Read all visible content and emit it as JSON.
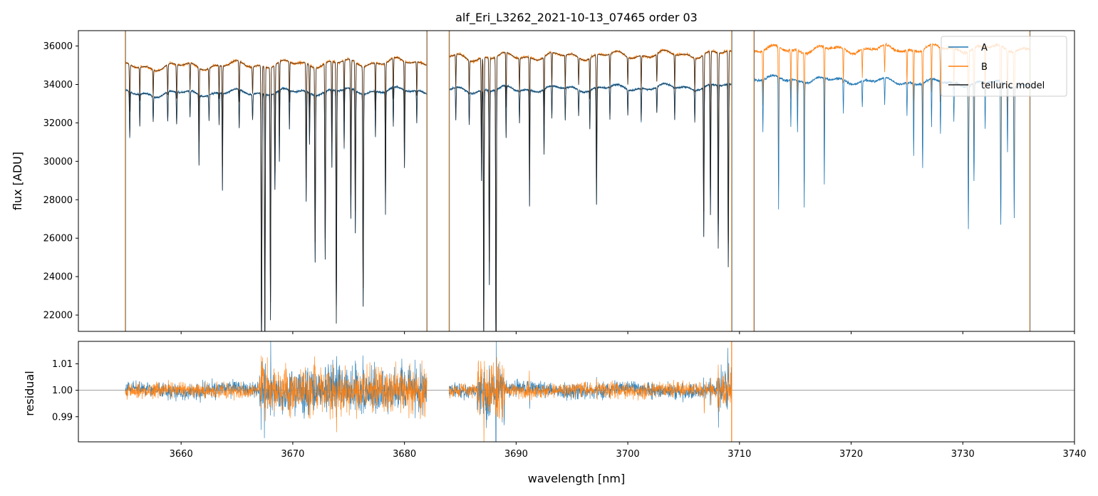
{
  "chart_data": {
    "type": "line",
    "title": "alf_Eri_L3262_2021-10-13_07465  order 03",
    "xlabel": "wavelength [nm]",
    "x_ticks": [
      3660,
      3670,
      3680,
      3690,
      3700,
      3710,
      3720,
      3730,
      3740
    ],
    "xlim": [
      3650.8,
      3740
    ],
    "colors": {
      "A": "#1f77b4",
      "B": "#ff7f0e",
      "model": "#202020",
      "refline": "#808080"
    },
    "legend": {
      "position": "top-right",
      "entries": [
        "A",
        "B",
        "telluric model"
      ]
    },
    "panels": [
      {
        "name": "flux",
        "ylabel": "flux [ADU]",
        "ylim": [
          21150,
          36800
        ],
        "y_ticks": [
          22000,
          24000,
          26000,
          28000,
          30000,
          32000,
          34000,
          36000
        ],
        "segments": [
          {
            "range": [
              3655.0,
              3682.0
            ],
            "baseA": 33500,
            "baseB": 34900,
            "trendA": 200,
            "trendB": 300,
            "model": true
          },
          {
            "range": [
              3684.0,
              3709.3
            ],
            "baseA": 33700,
            "baseB": 35400,
            "trendA": 200,
            "trendB": 200,
            "model": true
          },
          {
            "range": [
              3711.3,
              3736.0
            ],
            "baseA": 34300,
            "baseB": 35800,
            "trendA": -300,
            "trendB": 100,
            "model": false
          }
        ],
        "spikes": [
          3655.0,
          3682.0,
          3684.0,
          3709.3,
          3711.3,
          3736.0
        ],
        "absorption_lines": [
          [
            3655.4,
            0.03,
            0.07
          ],
          [
            3656.3,
            0.025,
            0.05
          ],
          [
            3657.5,
            0.025,
            0.04
          ],
          [
            3658.8,
            0.03,
            0.045
          ],
          [
            3659.6,
            0.03,
            0.05
          ],
          [
            3660.8,
            0.025,
            0.04
          ],
          [
            3661.6,
            0.025,
            0.11
          ],
          [
            3662.5,
            0.025,
            0.04
          ],
          [
            3663.4,
            0.025,
            0.05
          ],
          [
            3663.7,
            0.025,
            0.15
          ],
          [
            3665.2,
            0.03,
            0.06
          ],
          [
            3666.4,
            0.03,
            0.04
          ],
          [
            3667.2,
            0.035,
            0.4
          ],
          [
            3667.5,
            0.03,
            0.4
          ],
          [
            3668.0,
            0.03,
            0.35
          ],
          [
            3668.4,
            0.03,
            0.15
          ],
          [
            3668.8,
            0.025,
            0.11
          ],
          [
            3669.7,
            0.025,
            0.06
          ],
          [
            3671.2,
            0.03,
            0.17
          ],
          [
            3671.5,
            0.025,
            0.08
          ],
          [
            3672.0,
            0.03,
            0.26
          ],
          [
            3672.9,
            0.03,
            0.26
          ],
          [
            3673.5,
            0.025,
            0.12
          ],
          [
            3673.9,
            0.03,
            0.36
          ],
          [
            3674.6,
            0.025,
            0.09
          ],
          [
            3675.2,
            0.03,
            0.2
          ],
          [
            3675.6,
            0.03,
            0.22
          ],
          [
            3676.3,
            0.03,
            0.33
          ],
          [
            3677.4,
            0.025,
            0.07
          ],
          [
            3678.3,
            0.025,
            0.19
          ],
          [
            3679.0,
            0.025,
            0.06
          ],
          [
            3680.0,
            0.025,
            0.12
          ],
          [
            3681.1,
            0.025,
            0.05
          ],
          [
            3684.6,
            0.025,
            0.05
          ],
          [
            3685.8,
            0.025,
            0.05
          ],
          [
            3686.9,
            0.03,
            0.14
          ],
          [
            3687.1,
            0.03,
            0.4
          ],
          [
            3687.6,
            0.03,
            0.3
          ],
          [
            3688.2,
            0.03,
            0.45
          ],
          [
            3689.1,
            0.025,
            0.08
          ],
          [
            3690.3,
            0.025,
            0.05
          ],
          [
            3691.2,
            0.025,
            0.18
          ],
          [
            3692.5,
            0.025,
            0.1
          ],
          [
            3693.2,
            0.025,
            0.05
          ],
          [
            3694.4,
            0.025,
            0.05
          ],
          [
            3695.6,
            0.025,
            0.04
          ],
          [
            3696.6,
            0.025,
            0.06
          ],
          [
            3697.2,
            0.03,
            0.18
          ],
          [
            3698.4,
            0.025,
            0.05
          ],
          [
            3700.0,
            0.025,
            0.04
          ],
          [
            3701.2,
            0.025,
            0.05
          ],
          [
            3702.6,
            0.025,
            0.04
          ],
          [
            3704.2,
            0.025,
            0.05
          ],
          [
            3706.0,
            0.025,
            0.05
          ],
          [
            3706.8,
            0.03,
            0.23
          ],
          [
            3707.4,
            0.03,
            0.2
          ],
          [
            3708.1,
            0.03,
            0.25
          ],
          [
            3709.0,
            0.03,
            0.28
          ],
          [
            3712.1,
            0.025,
            0.08
          ],
          [
            3713.5,
            0.025,
            0.2
          ],
          [
            3714.6,
            0.025,
            0.07
          ],
          [
            3715.2,
            0.025,
            0.08
          ],
          [
            3715.8,
            0.025,
            0.19
          ],
          [
            3717.6,
            0.025,
            0.16
          ],
          [
            3719.3,
            0.025,
            0.05
          ],
          [
            3721.0,
            0.025,
            0.04
          ],
          [
            3723.0,
            0.025,
            0.04
          ],
          [
            3725.0,
            0.025,
            0.05
          ],
          [
            3725.6,
            0.025,
            0.11
          ],
          [
            3726.4,
            0.025,
            0.13
          ],
          [
            3727.2,
            0.025,
            0.07
          ],
          [
            3728.0,
            0.025,
            0.08
          ],
          [
            3729.2,
            0.025,
            0.06
          ],
          [
            3730.5,
            0.03,
            0.22
          ],
          [
            3731.0,
            0.03,
            0.15
          ],
          [
            3732.0,
            0.025,
            0.07
          ],
          [
            3733.4,
            0.03,
            0.22
          ],
          [
            3734.0,
            0.025,
            0.1
          ],
          [
            3734.6,
            0.03,
            0.2
          ]
        ]
      },
      {
        "name": "residual",
        "ylabel": "residual",
        "ylim": [
          0.9805,
          1.0185
        ],
        "y_ticks": [
          0.99,
          1.0,
          1.01
        ],
        "y_tick_labels": [
          "0.99",
          "1.00",
          "1.01"
        ],
        "reference_line": 1.0,
        "segments": [
          [
            3655.0,
            3682.0
          ],
          [
            3684.0,
            3709.3
          ]
        ],
        "noisy_regions": [
          [
            3667.0,
            3682.0,
            3.0
          ],
          [
            3686.5,
            3689.0,
            4.0
          ],
          [
            3708.0,
            3709.3,
            2.5
          ]
        ],
        "noise_sigma": 0.0028,
        "offsets": {
          "A": 0.0008,
          "B": -0.0004
        }
      }
    ]
  }
}
